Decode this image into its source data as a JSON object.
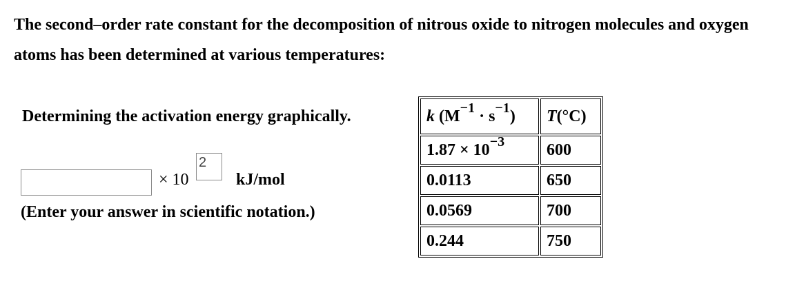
{
  "intro": "The second–order rate constant for the decomposition of nitrous oxide to nitrogen molecules and oxygen atoms has been determined at various temperatures:",
  "question": {
    "heading": "Determining the activation energy graphically.",
    "multiplier": "× 10",
    "exponent": "2",
    "unit": "kJ/mol",
    "note": "(Enter your answer in scientific notation.)"
  },
  "table": {
    "header": {
      "k_symbol": "k",
      "k_open": "(M",
      "k_exp1": "−1",
      "k_mid": "· s",
      "k_exp2": "−1",
      "k_close": ")",
      "t_symbol": "T",
      "t_unit": "(°C)"
    },
    "rows": [
      {
        "k": "1.87 × 10",
        "k_exp": "−3",
        "t": "600"
      },
      {
        "k": "0.0113",
        "t": "650"
      },
      {
        "k": "0.0569",
        "t": "700"
      },
      {
        "k": "0.244",
        "t": "750"
      }
    ]
  }
}
